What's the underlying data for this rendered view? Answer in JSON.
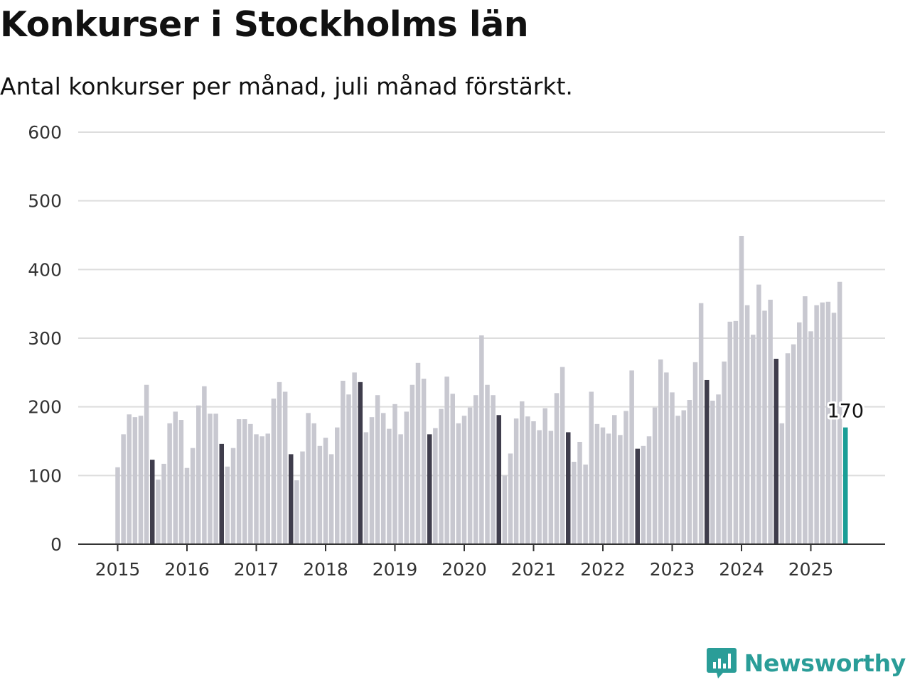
{
  "title": "Konkurser i Stockholms län",
  "subtitle": "Antal konkurser per månad, juli månad förstärkt.",
  "brand": "Newsworthy",
  "colors": {
    "bar": "#c8c8d0",
    "highlight_july": "#3f3d4c",
    "latest": "#1a9e96",
    "grid": "#dddddd",
    "axis": "#333333",
    "brand": "#2a9d98"
  },
  "chart_data": {
    "type": "bar",
    "title": "Konkurser i Stockholms län",
    "subtitle": "Antal konkurser per månad, juli månad förstärkt.",
    "xlabel": "",
    "ylabel": "",
    "ylim": [
      0,
      600
    ],
    "y_ticks": [
      0,
      100,
      200,
      300,
      400,
      500,
      600
    ],
    "x_ticks": [
      "2015",
      "2016",
      "2017",
      "2018",
      "2019",
      "2020",
      "2021",
      "2022",
      "2023",
      "2024",
      "2025"
    ],
    "x_start": "2015-01",
    "grid": true,
    "highlight": "july",
    "latest_label": "170",
    "values": [
      112,
      160,
      189,
      185,
      187,
      232,
      123,
      94,
      117,
      176,
      193,
      181,
      111,
      140,
      202,
      230,
      190,
      190,
      146,
      113,
      140,
      182,
      182,
      175,
      160,
      157,
      161,
      212,
      236,
      222,
      131,
      93,
      135,
      191,
      176,
      143,
      155,
      131,
      170,
      238,
      218,
      250,
      236,
      163,
      185,
      217,
      191,
      168,
      204,
      160,
      193,
      232,
      264,
      241,
      160,
      169,
      197,
      244,
      219,
      176,
      187,
      199,
      217,
      304,
      232,
      217,
      188,
      100,
      132,
      183,
      208,
      186,
      179,
      166,
      198,
      165,
      220,
      258,
      163,
      120,
      149,
      116,
      222,
      175,
      170,
      161,
      188,
      159,
      194,
      253,
      139,
      143,
      157,
      199,
      269,
      250,
      221,
      187,
      195,
      210,
      265,
      351,
      239,
      209,
      218,
      266,
      324,
      325,
      449,
      348,
      305,
      378,
      340,
      356,
      270,
      176,
      278,
      291,
      323,
      361,
      310,
      348,
      352,
      353,
      337,
      382,
      170
    ]
  }
}
